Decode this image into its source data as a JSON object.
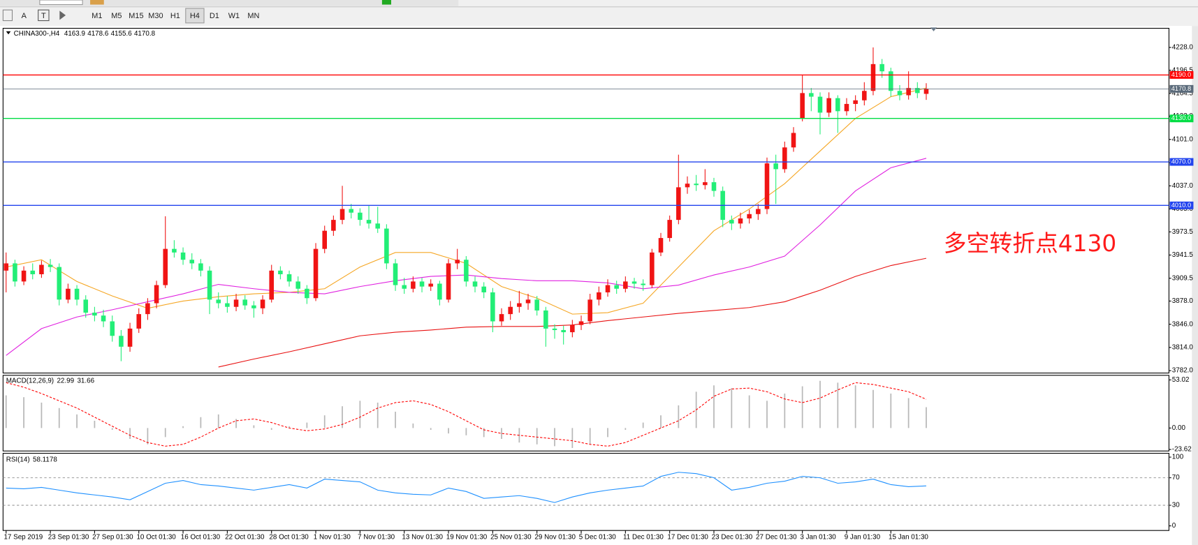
{
  "toolbar": {
    "labels": [
      "A"
    ],
    "timeframes": [
      "M1",
      "M5",
      "M15",
      "M30",
      "H1",
      "H4",
      "D1",
      "W1",
      "MN"
    ]
  },
  "chart_data": [
    {
      "type": "candlestick",
      "title": "CHINA300-,H4",
      "header_values": [
        4163.9,
        4178.6,
        4155.6,
        4170.8
      ],
      "categories": [
        "17 Sep 2019",
        null,
        null,
        null,
        null,
        "23 Sep 01:30",
        null,
        null,
        null,
        null,
        "27 Sep 01:30",
        null,
        null,
        null,
        null,
        "10 Oct 01:30",
        null,
        null,
        null,
        null,
        "16 Oct 01:30",
        null,
        null,
        null,
        null,
        "22 Oct 01:30",
        null,
        null,
        null,
        null,
        "28 Oct 01:30",
        null,
        null,
        null,
        null,
        "1 Nov 01:30",
        null,
        null,
        null,
        null,
        "7 Nov 01:30",
        null,
        null,
        null,
        null,
        "13 Nov 01:30",
        null,
        null,
        null,
        null,
        "19 Nov 01:30",
        null,
        null,
        null,
        null,
        "25 Nov 01:30",
        null,
        null,
        null,
        null,
        "29 Nov 01:30",
        null,
        null,
        null,
        null,
        "5 Dec 01:30",
        null,
        null,
        null,
        null,
        "11 Dec 01:30",
        null,
        null,
        null,
        null,
        "17 Dec 01:30",
        null,
        null,
        null,
        null,
        "23 Dec 01:30",
        null,
        null,
        null,
        null,
        "27 Dec 01:30",
        null,
        null,
        null,
        null,
        "3 Jan 01:30",
        null,
        null,
        null,
        null,
        "9 Jan 01:30",
        null,
        null,
        null,
        null,
        "15 Jan 01:30",
        null,
        null,
        null,
        null
      ],
      "ohlc": [
        [
          3920,
          3945,
          3890,
          3930
        ],
        [
          3930,
          3935,
          3898,
          3905
        ],
        [
          3905,
          3926,
          3900,
          3920
        ],
        [
          3920,
          3930,
          3908,
          3915
        ],
        [
          3915,
          3934,
          3910,
          3928
        ],
        [
          3928,
          3936,
          3918,
          3925
        ],
        [
          3925,
          3930,
          3872,
          3880
        ],
        [
          3880,
          3902,
          3875,
          3895
        ],
        [
          3895,
          3900,
          3872,
          3880
        ],
        [
          3880,
          3886,
          3855,
          3862
        ],
        [
          3862,
          3870,
          3850,
          3858
        ],
        [
          3858,
          3866,
          3842,
          3850
        ],
        [
          3850,
          3858,
          3822,
          3830
        ],
        [
          3830,
          3838,
          3795,
          3815
        ],
        [
          3815,
          3848,
          3808,
          3840
        ],
        [
          3840,
          3868,
          3834,
          3860
        ],
        [
          3860,
          3882,
          3852,
          3875
        ],
        [
          3875,
          3906,
          3868,
          3900
        ],
        [
          3900,
          3995,
          3896,
          3950
        ],
        [
          3950,
          3962,
          3938,
          3945
        ],
        [
          3945,
          3952,
          3928,
          3935
        ],
        [
          3935,
          3944,
          3922,
          3930
        ],
        [
          3930,
          3936,
          3912,
          3920
        ],
        [
          3920,
          3926,
          3860,
          3880
        ],
        [
          3880,
          3890,
          3868,
          3875
        ],
        [
          3875,
          3885,
          3862,
          3870
        ],
        [
          3870,
          3888,
          3864,
          3880
        ],
        [
          3880,
          3886,
          3866,
          3872
        ],
        [
          3872,
          3878,
          3855,
          3868
        ],
        [
          3868,
          3886,
          3860,
          3880
        ],
        [
          3880,
          3928,
          3876,
          3920
        ],
        [
          3920,
          3926,
          3908,
          3915
        ],
        [
          3915,
          3920,
          3898,
          3905
        ],
        [
          3905,
          3912,
          3888,
          3895
        ],
        [
          3895,
          3900,
          3874,
          3882
        ],
        [
          3882,
          3958,
          3878,
          3950
        ],
        [
          3950,
          3982,
          3944,
          3975
        ],
        [
          3975,
          3996,
          3968,
          3990
        ],
        [
          3990,
          4037,
          3984,
          4005
        ],
        [
          4005,
          4012,
          3992,
          4000
        ],
        [
          4000,
          4006,
          3982,
          3990
        ],
        [
          3990,
          4010,
          3978,
          3985
        ],
        [
          3985,
          4008,
          3972,
          3978
        ],
        [
          3978,
          3984,
          3922,
          3930
        ],
        [
          3930,
          3936,
          3892,
          3900
        ],
        [
          3900,
          3910,
          3888,
          3895
        ],
        [
          3895,
          3912,
          3890,
          3905
        ],
        [
          3905,
          3910,
          3890,
          3898
        ],
        [
          3898,
          3908,
          3892,
          3902
        ],
        [
          3902,
          3906,
          3872,
          3880
        ],
        [
          3880,
          3936,
          3876,
          3930
        ],
        [
          3930,
          3950,
          3922,
          3935
        ],
        [
          3935,
          3940,
          3898,
          3905
        ],
        [
          3905,
          3912,
          3890,
          3898
        ],
        [
          3898,
          3904,
          3882,
          3890
        ],
        [
          3890,
          3896,
          3835,
          3850
        ],
        [
          3850,
          3868,
          3844,
          3860
        ],
        [
          3860,
          3878,
          3852,
          3870
        ],
        [
          3870,
          3892,
          3862,
          3875
        ],
        [
          3875,
          3888,
          3866,
          3880
        ],
        [
          3880,
          3885,
          3858,
          3865
        ],
        [
          3865,
          3870,
          3815,
          3840
        ],
        [
          3840,
          3846,
          3826,
          3838
        ],
        [
          3838,
          3844,
          3818,
          3835
        ],
        [
          3835,
          3852,
          3828,
          3845
        ],
        [
          3845,
          3858,
          3838,
          3850
        ],
        [
          3850,
          3888,
          3846,
          3880
        ],
        [
          3880,
          3898,
          3872,
          3890
        ],
        [
          3890,
          3908,
          3884,
          3900
        ],
        [
          3900,
          3906,
          3888,
          3895
        ],
        [
          3895,
          3912,
          3890,
          3905
        ],
        [
          3905,
          3910,
          3895,
          3902
        ],
        [
          3902,
          3908,
          3892,
          3900
        ],
        [
          3900,
          3950,
          3896,
          3945
        ],
        [
          3945,
          3972,
          3940,
          3965
        ],
        [
          3965,
          3996,
          3960,
          3990
        ],
        [
          3990,
          4080,
          3984,
          4035
        ],
        [
          4035,
          4050,
          4026,
          4040
        ],
        [
          4040,
          4052,
          4030,
          4038
        ],
        [
          4038,
          4060,
          4032,
          4042
        ],
        [
          4042,
          4048,
          4022,
          4030
        ],
        [
          4030,
          4036,
          3980,
          3990
        ],
        [
          3990,
          3996,
          3976,
          3985
        ],
        [
          3985,
          4000,
          3978,
          3992
        ],
        [
          3992,
          4004,
          3985,
          3998
        ],
        [
          3998,
          4012,
          3990,
          4005
        ],
        [
          4005,
          4076,
          3998,
          4068
        ],
        [
          4068,
          4080,
          4012,
          4060
        ],
        [
          4060,
          4098,
          4055,
          4090
        ],
        [
          4090,
          4118,
          4084,
          4110
        ],
        [
          4130,
          4190,
          4126,
          4165
        ],
        [
          4165,
          4172,
          4140,
          4160
        ],
        [
          4160,
          4166,
          4108,
          4138
        ],
        [
          4138,
          4166,
          4132,
          4158
        ],
        [
          4158,
          4162,
          4110,
          4140
        ],
        [
          4140,
          4158,
          4134,
          4150
        ],
        [
          4150,
          4162,
          4140,
          4155
        ],
        [
          4155,
          4180,
          4148,
          4168
        ],
        [
          4168,
          4228,
          4162,
          4205
        ],
        [
          4205,
          4212,
          4186,
          4195
        ],
        [
          4195,
          4200,
          4160,
          4168
        ],
        [
          4168,
          4176,
          4155,
          4162
        ],
        [
          4162,
          4195,
          4156,
          4172
        ],
        [
          4172,
          4180,
          4158,
          4165
        ],
        [
          4163.9,
          4178.6,
          4155.6,
          4170.8
        ]
      ],
      "bull_color": "#f01414",
      "bear_color": "#22ee77",
      "ylim": [
        3778.7,
        4254.4
      ],
      "yticks": [
        {
          "value": 4228,
          "label": "4228.0"
        },
        {
          "value": 4196.5,
          "label": "4196.5"
        },
        {
          "value": 4164.5,
          "label": "4164.5"
        },
        {
          "value": 4133,
          "label": "4133.0"
        },
        {
          "value": 4101,
          "label": "4101.0"
        },
        {
          "value": 4069,
          "label": "4069.0"
        },
        {
          "value": 4037,
          "label": "4037.0"
        },
        {
          "value": 4005,
          "label": "4005.0"
        },
        {
          "value": 3973.5,
          "label": "3973.5"
        },
        {
          "value": 3941.5,
          "label": "3941.5"
        },
        {
          "value": 3909.5,
          "label": "3909.5"
        },
        {
          "value": 3878,
          "label": "3878.0"
        },
        {
          "value": 3846,
          "label": "3846.0"
        },
        {
          "value": 3814,
          "label": "3814.0"
        },
        {
          "value": 3782,
          "label": "3782.0"
        }
      ],
      "ma_x": [
        0,
        4,
        8,
        12,
        16,
        20,
        24,
        28,
        32,
        36,
        40,
        44,
        48,
        52,
        56,
        60,
        64,
        68,
        72,
        76,
        80,
        84,
        88,
        92,
        96,
        100,
        104
      ],
      "moving_averages": [
        {
          "color": "#f5a623",
          "values": [
            3925,
            3935,
            3905,
            3885,
            3868,
            3878,
            3884,
            3888,
            3890,
            3895,
            3925,
            3945,
            3945,
            3930,
            3898,
            3882,
            3860,
            3862,
            3875,
            3925,
            3975,
            4005,
            4040,
            4085,
            4130,
            4160,
            4172
          ]
        },
        {
          "color": "#e020e0",
          "values": [
            3803,
            3840,
            3856,
            3866,
            3877,
            3888,
            3901,
            3895,
            3890,
            3888,
            3898,
            3906,
            3912,
            3914,
            3909,
            3906,
            3906,
            3903,
            3895,
            3900,
            3914,
            3925,
            3940,
            3983,
            4030,
            4062,
            4075
          ]
        },
        {
          "color": "#e81010",
          "values": [
            null,
            null,
            null,
            null,
            null,
            null,
            3787,
            3798,
            3808,
            3819,
            3830,
            3835,
            3838,
            3842,
            3843,
            3843,
            3845,
            3851,
            3856,
            3861,
            3865,
            3869,
            3877,
            3893,
            3912,
            3927,
            3937
          ]
        }
      ],
      "levels": [
        {
          "value": 4190,
          "label": "4190.0",
          "color": "#ff0000"
        },
        {
          "value": 4170.8,
          "label": "4170.8",
          "color": "#5a6a7a"
        },
        {
          "value": 4130,
          "label": "4130.0",
          "color": "#00dd44"
        },
        {
          "value": 4070,
          "label": "4070.0",
          "color": "#2244ee"
        },
        {
          "value": 4010,
          "label": "4010.0",
          "color": "#2244ee"
        }
      ],
      "annotation": "多空转折点4130"
    },
    {
      "type": "macd",
      "title": "MACD(12,26,9)",
      "current": [
        22.99,
        31.66
      ],
      "x": [
        0,
        2,
        4,
        6,
        8,
        10,
        12,
        14,
        16,
        18,
        20,
        22,
        24,
        26,
        28,
        30,
        32,
        34,
        36,
        38,
        40,
        42,
        44,
        46,
        48,
        50,
        52,
        54,
        56,
        58,
        60,
        62,
        64,
        66,
        68,
        70,
        72,
        74,
        76,
        78,
        80,
        82,
        84,
        86,
        88,
        90,
        92,
        94,
        96,
        98,
        100,
        102,
        104
      ],
      "histogram": {
        "color": "#b8b8b8",
        "values": [
          36,
          34,
          28,
          22,
          15,
          8,
          -2,
          -12,
          -18,
          -10,
          2,
          12,
          15,
          10,
          3,
          -2,
          2,
          6,
          14,
          24,
          30,
          28,
          18,
          5,
          -2,
          -6,
          -8,
          -10,
          -12,
          -16,
          -18,
          -20,
          -22,
          -18,
          -10,
          -2,
          6,
          14,
          25,
          40,
          47,
          44,
          36,
          30,
          38,
          46,
          52,
          50,
          47,
          42,
          38,
          33,
          22.99
        ]
      },
      "signal": {
        "color": "#ff0000",
        "values": [
          50,
          45,
          38,
          30,
          22,
          12,
          2,
          -8,
          -16,
          -20,
          -18,
          -10,
          0,
          8,
          10,
          6,
          0,
          -3,
          -1,
          4,
          12,
          22,
          28,
          30,
          26,
          18,
          8,
          -2,
          -6,
          -8,
          -10,
          -12,
          -14,
          -18,
          -20,
          -16,
          -8,
          0,
          8,
          20,
          35,
          43,
          44,
          40,
          32,
          28,
          33,
          42,
          50,
          48,
          44,
          40,
          31.66
        ]
      },
      "ylim": [
        -25.3,
        58.1
      ],
      "yticks": [
        53.02,
        {
          "value": 0,
          "label": "0.00"
        },
        -23.62
      ]
    },
    {
      "type": "line",
      "title": "RSI(14)",
      "current": 58.1178,
      "x": [
        0,
        2,
        4,
        6,
        8,
        10,
        12,
        14,
        16,
        18,
        20,
        22,
        24,
        26,
        28,
        30,
        32,
        34,
        36,
        38,
        40,
        42,
        44,
        46,
        48,
        50,
        52,
        54,
        56,
        58,
        60,
        62,
        64,
        66,
        68,
        70,
        72,
        74,
        76,
        78,
        80,
        82,
        84,
        86,
        88,
        90,
        92,
        94,
        96,
        98,
        100,
        102,
        104
      ],
      "color": "#1e90ff",
      "values": [
        55,
        54,
        56,
        52,
        48,
        45,
        42,
        38,
        50,
        62,
        66,
        60,
        58,
        55,
        52,
        56,
        60,
        55,
        68,
        66,
        64,
        52,
        48,
        46,
        45,
        55,
        50,
        40,
        42,
        44,
        40,
        34,
        42,
        48,
        52,
        55,
        58,
        72,
        78,
        76,
        70,
        52,
        56,
        62,
        65,
        72,
        70,
        62,
        64,
        68,
        60,
        57,
        58.1178
      ],
      "ylim": [
        -6.7,
        105.6
      ],
      "yticks": [
        100,
        70,
        30,
        0
      ],
      "levels": [
        70,
        30
      ]
    }
  ]
}
